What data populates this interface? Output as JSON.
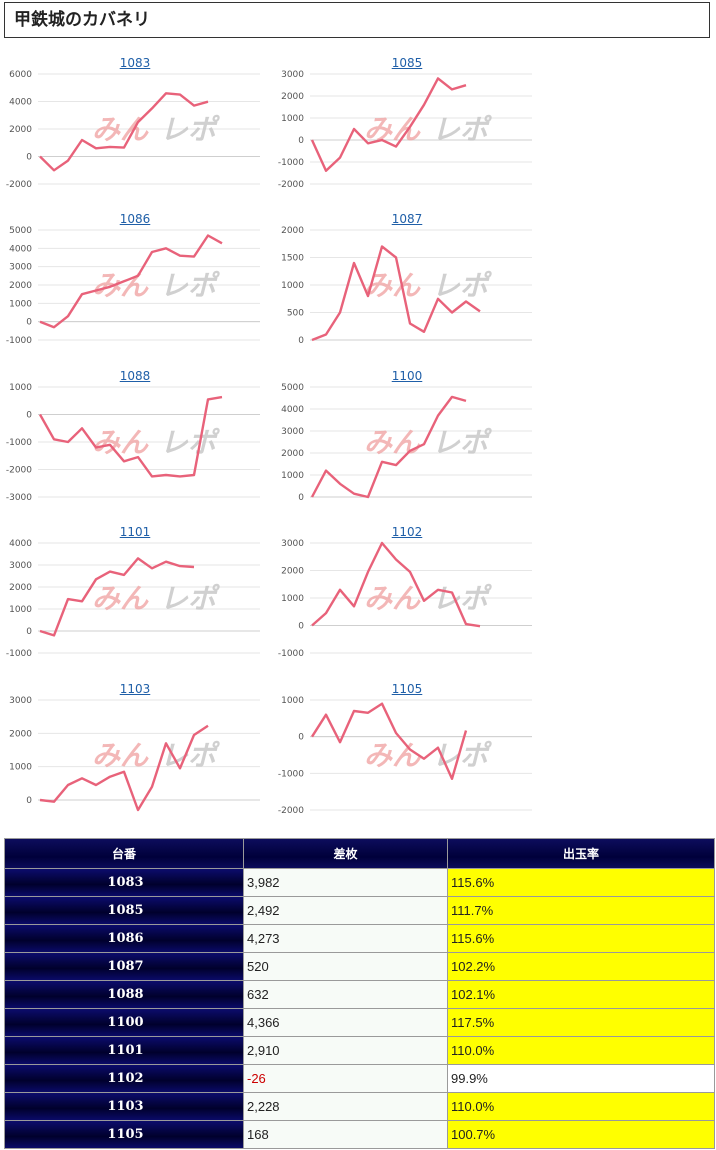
{
  "page": {
    "title": "甲鉄城のカバネリ"
  },
  "watermark": {
    "text_left": "みん",
    "text_right": "レポ"
  },
  "colors": {
    "line": "#e8627a",
    "grid": "#e6e6e6",
    "watermark_left": "#f0a0a0",
    "watermark_right": "#c8c8c8",
    "rate_highlight": "#ffff00",
    "header_bg": "#00003a",
    "link": "#1f5fa8"
  },
  "chart_data": [
    {
      "type": "line",
      "title": "1083",
      "yticks": [
        6000,
        4000,
        2000,
        0,
        -2000
      ],
      "ylim": [
        -2000,
        6000
      ],
      "grid": true,
      "values": [
        0,
        -1000,
        -300,
        1200,
        600,
        700,
        650,
        2500,
        3500,
        4600,
        4500,
        3700,
        3982
      ]
    },
    {
      "type": "line",
      "title": "1085",
      "yticks": [
        3000,
        2000,
        1000,
        0,
        -1000,
        -2000
      ],
      "ylim": [
        -2000,
        3000
      ],
      "grid": true,
      "values": [
        0,
        -1400,
        -800,
        500,
        -150,
        0,
        -300,
        600,
        1600,
        2800,
        2300,
        2492
      ]
    },
    {
      "type": "line",
      "title": "1086",
      "yticks": [
        5000,
        4000,
        3000,
        2000,
        1000,
        0,
        -1000
      ],
      "ylim": [
        -1000,
        5000
      ],
      "grid": true,
      "values": [
        0,
        -300,
        300,
        1500,
        1700,
        1900,
        2200,
        2500,
        3800,
        4000,
        3600,
        3550,
        4700,
        4273
      ]
    },
    {
      "type": "line",
      "title": "1087",
      "yticks": [
        2000,
        1500,
        1000,
        500,
        0
      ],
      "ylim": [
        0,
        2000
      ],
      "grid": true,
      "values": [
        0,
        100,
        500,
        1400,
        800,
        1700,
        1500,
        300,
        150,
        750,
        500,
        700,
        520
      ]
    },
    {
      "type": "line",
      "title": "1088",
      "yticks": [
        1000,
        0,
        -1000,
        -2000,
        -3000
      ],
      "ylim": [
        -3000,
        1000
      ],
      "grid": true,
      "values": [
        0,
        -900,
        -1000,
        -500,
        -1200,
        -1100,
        -1700,
        -1550,
        -2250,
        -2200,
        -2250,
        -2200,
        550,
        632
      ]
    },
    {
      "type": "line",
      "title": "1100",
      "yticks": [
        5000,
        4000,
        3000,
        2000,
        1000,
        0
      ],
      "ylim": [
        0,
        5000
      ],
      "grid": true,
      "values": [
        0,
        1200,
        600,
        150,
        0,
        1600,
        1450,
        2100,
        2400,
        3700,
        4550,
        4366
      ]
    },
    {
      "type": "line",
      "title": "1101",
      "yticks": [
        4000,
        3000,
        2000,
        1000,
        0,
        -1000
      ],
      "ylim": [
        -1000,
        4000
      ],
      "grid": true,
      "values": [
        0,
        -200,
        1450,
        1350,
        2350,
        2700,
        2550,
        3300,
        2850,
        3150,
        2950,
        2910
      ]
    },
    {
      "type": "line",
      "title": "1102",
      "yticks": [
        3000,
        2000,
        1000,
        0,
        -1000
      ],
      "ylim": [
        -1000,
        3000
      ],
      "grid": true,
      "values": [
        0,
        450,
        1300,
        700,
        1950,
        3000,
        2400,
        1950,
        900,
        1300,
        1200,
        50,
        -26
      ]
    },
    {
      "type": "line",
      "title": "1103",
      "yticks": [
        3000,
        2000,
        1000,
        0
      ],
      "ylim": [
        -300,
        3000
      ],
      "grid": true,
      "values": [
        0,
        -50,
        450,
        650,
        450,
        700,
        850,
        -300,
        400,
        1700,
        950,
        1950,
        2228
      ]
    },
    {
      "type": "line",
      "title": "1105",
      "yticks": [
        1000,
        0,
        -1000,
        -2000
      ],
      "ylim": [
        -2000,
        1000
      ],
      "grid": true,
      "values": [
        0,
        600,
        -150,
        700,
        650,
        900,
        100,
        -350,
        -600,
        -300,
        -1150,
        168
      ]
    }
  ],
  "table": {
    "headers": [
      "台番",
      "差枚",
      "出玉率"
    ],
    "rows": [
      {
        "unit": "1083",
        "diff": "3,982",
        "rate": "115.6%",
        "highlight": true
      },
      {
        "unit": "1085",
        "diff": "2,492",
        "rate": "111.7%",
        "highlight": true
      },
      {
        "unit": "1086",
        "diff": "4,273",
        "rate": "115.6%",
        "highlight": true
      },
      {
        "unit": "1087",
        "diff": "520",
        "rate": "102.2%",
        "highlight": true
      },
      {
        "unit": "1088",
        "diff": "632",
        "rate": "102.1%",
        "highlight": true
      },
      {
        "unit": "1100",
        "diff": "4,366",
        "rate": "117.5%",
        "highlight": true
      },
      {
        "unit": "1101",
        "diff": "2,910",
        "rate": "110.0%",
        "highlight": true
      },
      {
        "unit": "1102",
        "diff": "-26",
        "rate": "99.9%",
        "highlight": false,
        "negative": true
      },
      {
        "unit": "1103",
        "diff": "2,228",
        "rate": "110.0%",
        "highlight": true
      },
      {
        "unit": "1105",
        "diff": "168",
        "rate": "100.7%",
        "highlight": true
      }
    ]
  }
}
